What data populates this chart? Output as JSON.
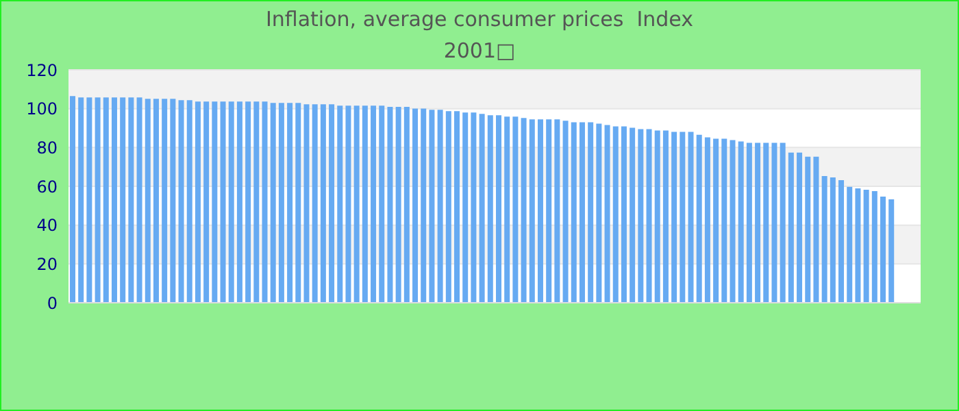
{
  "chart_data": {
    "type": "bar",
    "title": "Inflation, average consumer prices  Index",
    "subtitle": "2001□",
    "categories": [
      null,
      null,
      null,
      null,
      null,
      null,
      null,
      null,
      null,
      null,
      null,
      null,
      null,
      null,
      null,
      null,
      null,
      null,
      null,
      null,
      null,
      null,
      null,
      null,
      null,
      null,
      null,
      null,
      null,
      null,
      null,
      null,
      null,
      null,
      null,
      null,
      null,
      null,
      null,
      null,
      null,
      null,
      null,
      null,
      null,
      null,
      null,
      null,
      null,
      null,
      null,
      null,
      null,
      null,
      null,
      null,
      null,
      null,
      null,
      null,
      null,
      null,
      null,
      null,
      null,
      null,
      null,
      null,
      null,
      null,
      null,
      null,
      null,
      null,
      null,
      null,
      null,
      null,
      null,
      null,
      null,
      null,
      null,
      null,
      null,
      null,
      null,
      null,
      null,
      null,
      null,
      null,
      null,
      null,
      null,
      null,
      null,
      null,
      null,
      null,
      null,
      null
    ],
    "values": [
      106.5,
      105.8,
      105.8,
      105.8,
      105.8,
      105.8,
      105.8,
      105.8,
      105.8,
      105.1,
      105.1,
      105.1,
      105.1,
      104.4,
      104.4,
      103.7,
      103.7,
      103.7,
      103.7,
      103.7,
      103.7,
      103.7,
      103.7,
      103.7,
      103.0,
      103.0,
      103.0,
      103.0,
      102.3,
      102.3,
      102.3,
      102.3,
      101.6,
      101.6,
      101.6,
      101.6,
      101.6,
      101.6,
      100.9,
      100.9,
      100.9,
      100.1,
      100.1,
      99.4,
      99.4,
      98.7,
      98.7,
      98.0,
      98.0,
      97.3,
      96.6,
      96.6,
      95.9,
      95.9,
      95.2,
      94.5,
      94.5,
      94.5,
      94.5,
      93.8,
      93.0,
      93.0,
      93.0,
      92.3,
      91.6,
      90.9,
      90.9,
      90.2,
      89.5,
      89.5,
      88.8,
      88.8,
      88.1,
      88.1,
      88.1,
      86.6,
      85.2,
      84.5,
      84.5,
      83.8,
      83.1,
      82.4,
      82.4,
      82.4,
      82.4,
      82.4,
      77.4,
      77.4,
      75.3,
      75.3,
      65.3,
      64.6,
      63.2,
      59.7,
      58.9,
      58.2,
      57.5,
      54.7,
      53.3,
      null,
      null,
      null
    ],
    "color": "#66aaf2",
    "ylim": [
      0,
      120
    ],
    "yticks": [
      0,
      20,
      40,
      60,
      80,
      100,
      120
    ],
    "grid": "y",
    "tick_labels": "y"
  }
}
